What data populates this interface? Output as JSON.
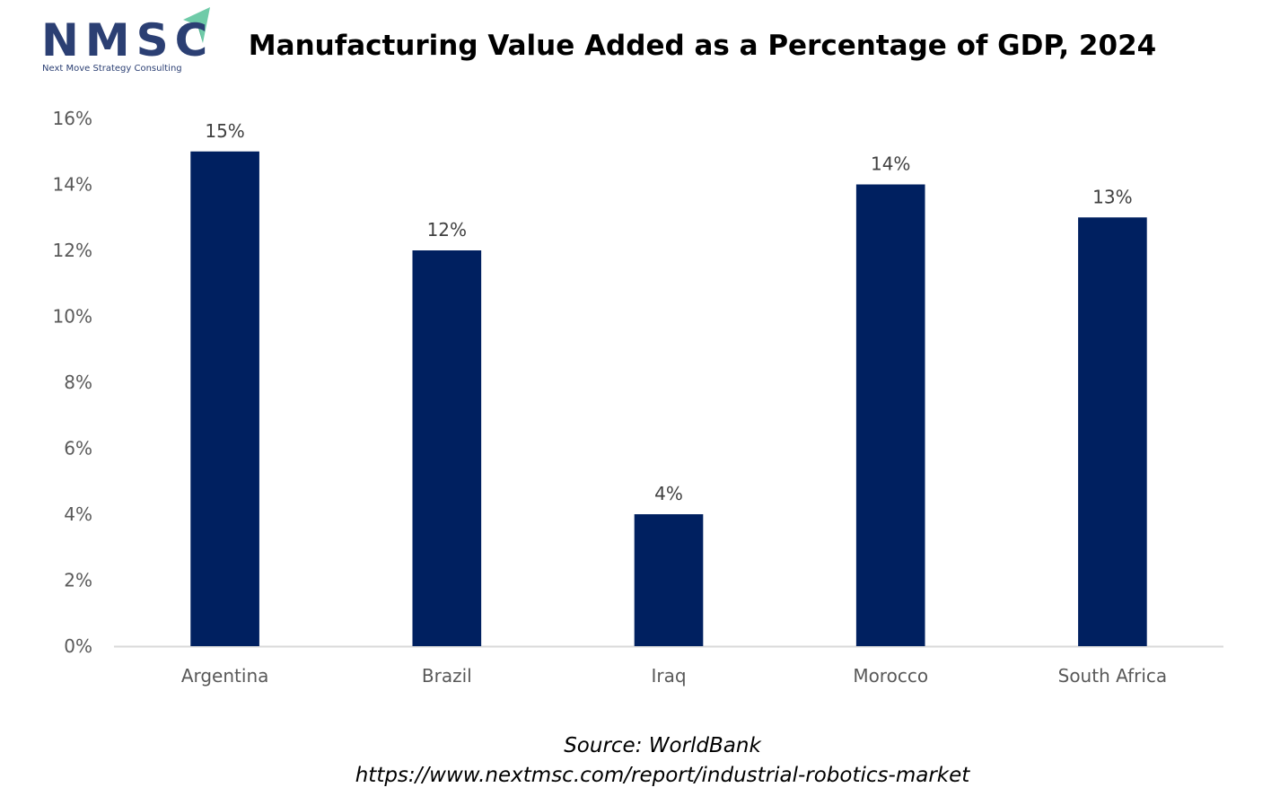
{
  "logo": {
    "letters": "NMSC",
    "subtitle": "Next Move Strategy Consulting",
    "accent_color": "#6fcba8",
    "brand_color": "#2b3f73"
  },
  "chart_data": {
    "type": "bar",
    "title": "Manufacturing Value Added as a Percentage of GDP, 2024",
    "xlabel": "",
    "ylabel": "",
    "categories": [
      "Argentina",
      "Brazil",
      "Iraq",
      "Morocco",
      "South Africa"
    ],
    "values": [
      15,
      12,
      4,
      14,
      13
    ],
    "data_labels": [
      "15%",
      "12%",
      "4%",
      "14%",
      "13%"
    ],
    "ylim": [
      0,
      16
    ],
    "yticks": [
      0,
      2,
      4,
      6,
      8,
      10,
      12,
      14,
      16
    ],
    "ytick_labels": [
      "0%",
      "2%",
      "4%",
      "6%",
      "8%",
      "10%",
      "12%",
      "14%",
      "16%"
    ],
    "bar_color": "#002060",
    "grid": false,
    "legend": "none"
  },
  "footer": {
    "source": "Source: WorldBank",
    "url": "https://www.nextmsc.com/report/industrial-robotics-market"
  }
}
